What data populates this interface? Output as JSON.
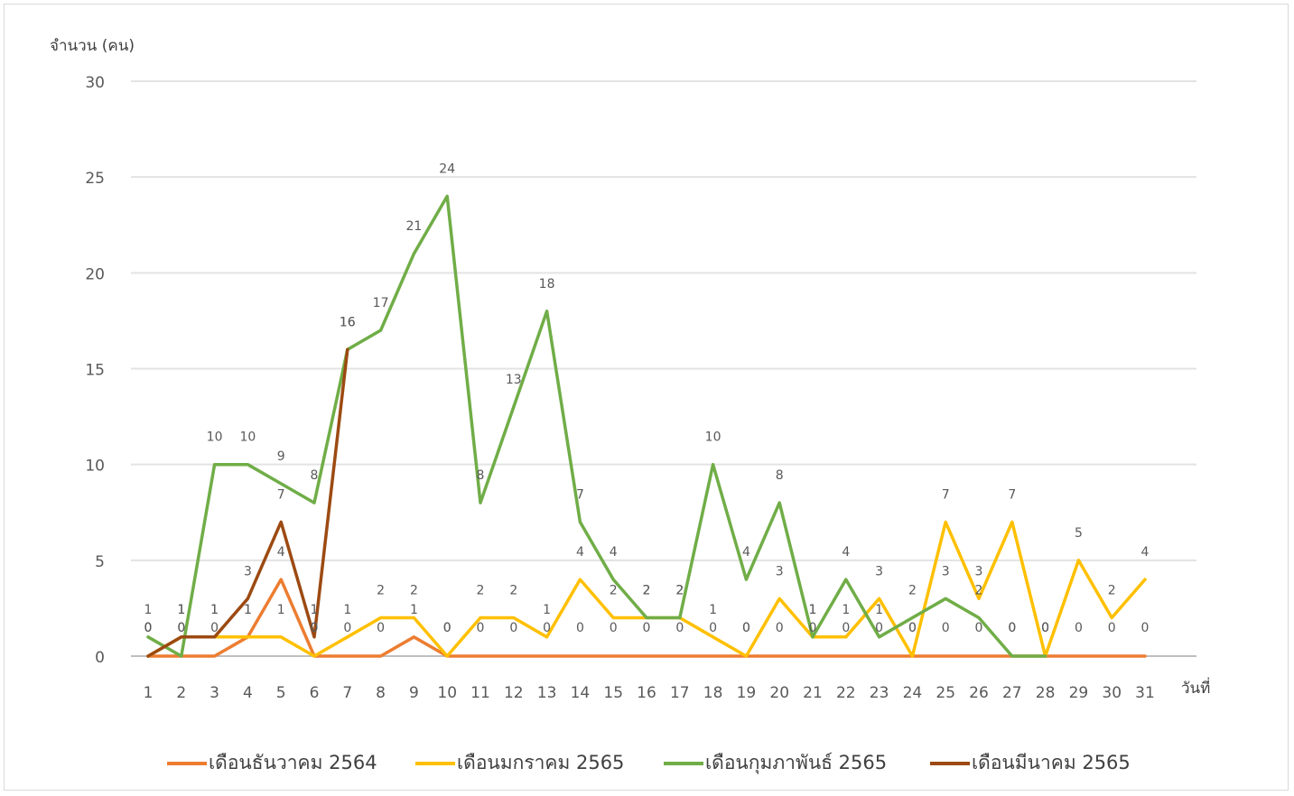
{
  "chart_data": {
    "type": "line",
    "title": "",
    "ylabel": "จำนวน (คน)",
    "xlabel": "วันที่",
    "ylim": [
      0,
      30
    ],
    "yticks": [
      0,
      5,
      10,
      15,
      20,
      25,
      30
    ],
    "grid": true,
    "legend_position": "bottom",
    "x": [
      1,
      2,
      3,
      4,
      5,
      6,
      7,
      8,
      9,
      10,
      11,
      12,
      13,
      14,
      15,
      16,
      17,
      18,
      19,
      20,
      21,
      22,
      23,
      24,
      25,
      26,
      27,
      28,
      29,
      30,
      31
    ],
    "series": [
      {
        "name": "เดือนธันวาคม 2564",
        "color": "#ed7d31",
        "values": [
          0,
          0,
          0,
          1,
          4,
          0,
          0,
          0,
          1,
          0,
          0,
          0,
          0,
          0,
          0,
          0,
          0,
          0,
          0,
          0,
          0,
          0,
          0,
          0,
          0,
          0,
          0,
          0,
          0,
          0,
          0
        ]
      },
      {
        "name": "เดือนมกราคม 2565",
        "color": "#ffc000",
        "values": [
          0,
          1,
          1,
          1,
          1,
          0,
          1,
          2,
          2,
          0,
          2,
          2,
          1,
          4,
          2,
          2,
          2,
          1,
          0,
          3,
          1,
          1,
          3,
          0,
          7,
          3,
          7,
          0,
          5,
          2,
          4
        ]
      },
      {
        "name": "เดือนกุมภาพันธ์ 2565",
        "color": "#70ad47",
        "values": [
          1,
          0,
          10,
          10,
          9,
          8,
          16,
          17,
          21,
          24,
          8,
          13,
          18,
          7,
          4,
          2,
          2,
          10,
          4,
          8,
          1,
          4,
          1,
          2,
          3,
          2,
          0,
          0,
          null,
          null,
          null
        ]
      },
      {
        "name": "เดือนมีนาคม 2565",
        "color": "#9c4a12",
        "values": [
          0,
          1,
          1,
          3,
          7,
          1,
          16,
          null,
          null,
          null,
          null,
          null,
          null,
          null,
          null,
          null,
          null,
          null,
          null,
          null,
          null,
          null,
          null,
          null,
          null,
          null,
          null,
          null,
          null,
          null,
          null
        ]
      }
    ]
  }
}
